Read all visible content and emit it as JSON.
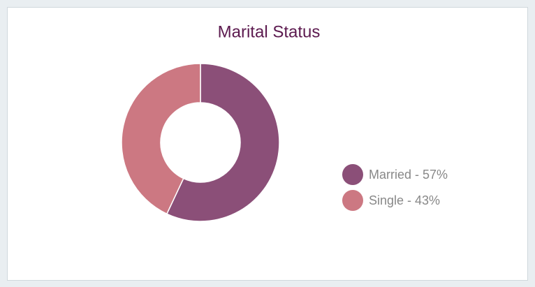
{
  "chart_data": {
    "type": "donut",
    "title": "Marital Status",
    "categories": [
      "Married - 57%",
      "Single - 43%"
    ],
    "values": [
      57,
      43
    ],
    "colors": [
      "#8b4f78",
      "#cc7882"
    ]
  }
}
